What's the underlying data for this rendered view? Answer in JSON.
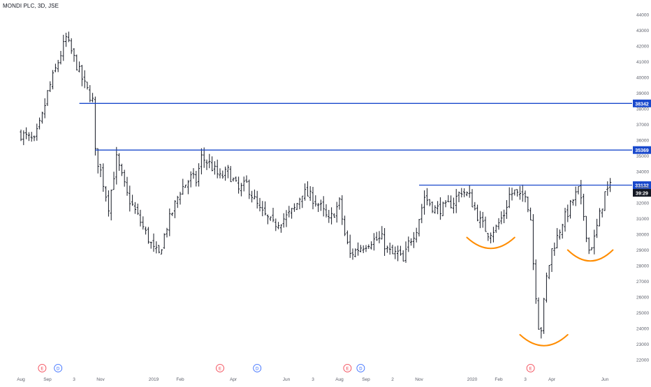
{
  "chart_data": {
    "type": "candlestick",
    "title": "MONDI PLC, 3D, JSE",
    "y_axis": {
      "position": "right",
      "ylim": [
        21400,
        44800
      ],
      "ticks": [
        22000,
        23000,
        24000,
        25000,
        26000,
        27000,
        28000,
        29000,
        30000,
        31000,
        32000,
        33000,
        34000,
        35000,
        36000,
        37000,
        38000,
        39000,
        40000,
        41000,
        42000,
        43000,
        44000
      ]
    },
    "x_axis": {
      "ticks": [
        {
          "label": "Aug",
          "t": 0
        },
        {
          "label": "Sep",
          "t": 10
        },
        {
          "label": "3",
          "t": 20
        },
        {
          "label": "Nov",
          "t": 30
        },
        {
          "label": "2019",
          "t": 50
        },
        {
          "label": "Feb",
          "t": 60
        },
        {
          "label": "Apr",
          "t": 80
        },
        {
          "label": "Jun",
          "t": 100
        },
        {
          "label": "3",
          "t": 110
        },
        {
          "label": "Aug",
          "t": 120
        },
        {
          "label": "Sep",
          "t": 130
        },
        {
          "label": "2",
          "t": 140
        },
        {
          "label": "Nov",
          "t": 150
        },
        {
          "label": "2020",
          "t": 170
        },
        {
          "label": "Feb",
          "t": 180
        },
        {
          "label": "3",
          "t": 190
        },
        {
          "label": "Apr",
          "t": 200
        },
        {
          "label": "Jun",
          "t": 220
        }
      ]
    },
    "price_path": [
      [
        0,
        36400
      ],
      [
        5,
        35900
      ],
      [
        8,
        37500
      ],
      [
        10,
        39000
      ],
      [
        14,
        41000
      ],
      [
        17,
        42500
      ],
      [
        20,
        41200
      ],
      [
        24,
        39500
      ],
      [
        27,
        38500
      ],
      [
        28,
        35200
      ],
      [
        30,
        34000
      ],
      [
        33,
        31800
      ],
      [
        36,
        34800
      ],
      [
        40,
        32500
      ],
      [
        45,
        30800
      ],
      [
        50,
        29000
      ],
      [
        52,
        28700
      ],
      [
        55,
        30500
      ],
      [
        60,
        32800
      ],
      [
        64,
        33600
      ],
      [
        66,
        33400
      ],
      [
        68,
        34900
      ],
      [
        71,
        34500
      ],
      [
        75,
        33600
      ],
      [
        78,
        34000
      ],
      [
        82,
        32800
      ],
      [
        85,
        33200
      ],
      [
        90,
        31500
      ],
      [
        95,
        30600
      ],
      [
        100,
        31100
      ],
      [
        103,
        31600
      ],
      [
        106,
        32700
      ],
      [
        110,
        32300
      ],
      [
        113,
        31700
      ],
      [
        116,
        30800
      ],
      [
        120,
        32000
      ],
      [
        122,
        30000
      ],
      [
        124,
        28700
      ],
      [
        128,
        29200
      ],
      [
        132,
        29600
      ],
      [
        136,
        29700
      ],
      [
        138,
        29000
      ],
      [
        140,
        28700
      ],
      [
        142,
        28800
      ],
      [
        144,
        28200
      ],
      [
        146,
        29400
      ],
      [
        149,
        30400
      ],
      [
        152,
        32400
      ],
      [
        156,
        31600
      ],
      [
        160,
        31700
      ],
      [
        163,
        32100
      ],
      [
        166,
        32800
      ],
      [
        169,
        32400
      ],
      [
        173,
        30800
      ],
      [
        176,
        30100
      ],
      [
        179,
        30400
      ],
      [
        182,
        31300
      ],
      [
        184,
        32500
      ],
      [
        186,
        32700
      ],
      [
        188,
        32300
      ],
      [
        190,
        32700
      ],
      [
        192,
        31000
      ],
      [
        193,
        28200
      ],
      [
        195,
        24200
      ],
      [
        196,
        24000
      ],
      [
        198,
        27200
      ],
      [
        200,
        29000
      ],
      [
        202,
        29800
      ],
      [
        204,
        30800
      ],
      [
        206,
        31400
      ],
      [
        208,
        32200
      ],
      [
        210,
        32800
      ],
      [
        212,
        31200
      ],
      [
        214,
        29000
      ],
      [
        216,
        29700
      ],
      [
        218,
        31200
      ],
      [
        220,
        32600
      ],
      [
        222,
        33000
      ]
    ],
    "horizontal_lines": [
      {
        "price": 38342,
        "label": "38342",
        "color": "#1848cc",
        "from_t": 22
      },
      {
        "price": 35369,
        "label": "35369",
        "color": "#1848cc",
        "from_t": 28
      },
      {
        "price": 33132,
        "label": "33132",
        "color": "#1848cc",
        "from_t": 150
      }
    ],
    "current_price": {
      "label": "33132",
      "countdown": "39:29"
    },
    "annotations": {
      "arcs": [
        {
          "t0": 168,
          "t1": 186,
          "p_top": 29800,
          "p_bottom": 29100
        },
        {
          "t0": 188,
          "t1": 206,
          "p_top": 23600,
          "p_bottom": 22900
        },
        {
          "t0": 206,
          "t1": 223,
          "p_top": 29000,
          "p_bottom": 28300
        }
      ],
      "arc_color": "#ff8c00"
    },
    "events": [
      {
        "label": "E",
        "t": 8,
        "color": "#f23645"
      },
      {
        "label": "D",
        "t": 14,
        "color": "#2962ff"
      },
      {
        "label": "E",
        "t": 75,
        "color": "#f23645"
      },
      {
        "label": "D",
        "t": 89,
        "color": "#2962ff"
      },
      {
        "label": "E",
        "t": 123,
        "color": "#f23645"
      },
      {
        "label": "D",
        "t": 128,
        "color": "#2962ff"
      },
      {
        "label": "E",
        "t": 192,
        "color": "#f23645"
      }
    ],
    "grid": false
  },
  "colors": {
    "candle": "#131722",
    "axis_text": "#5d606b",
    "label_dark": "#131722"
  }
}
